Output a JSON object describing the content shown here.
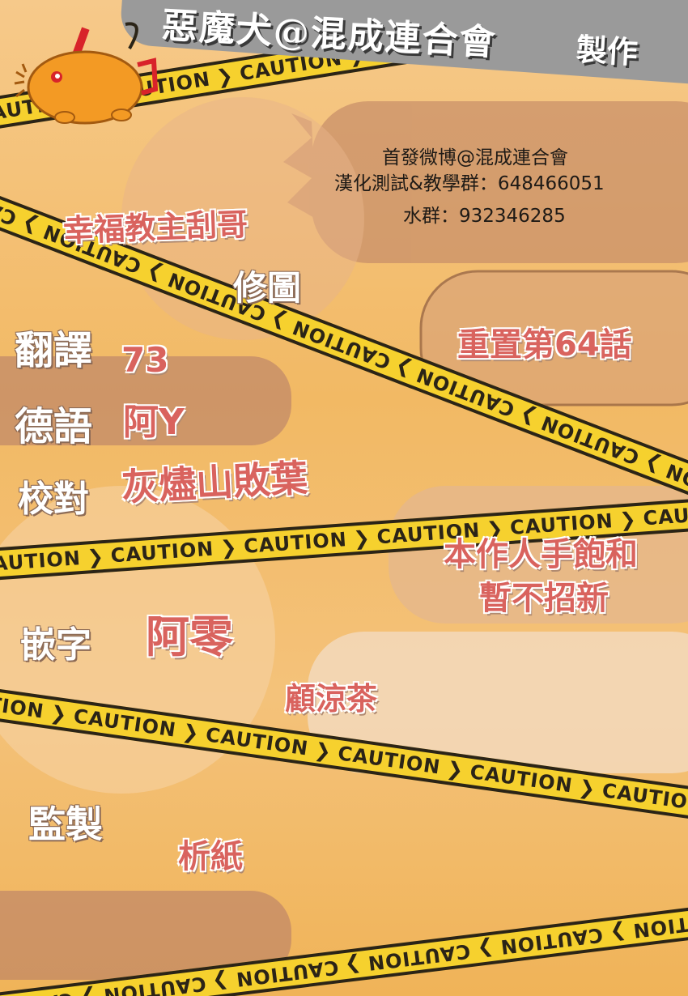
{
  "header": {
    "group": "惡魔犬@混成連合會",
    "credit": "製作"
  },
  "info": {
    "weibo": "首發微博@混成連合會",
    "test_group": "漢化測試&教學群：648466051",
    "water_group": "水群：932346285"
  },
  "notices": {
    "reset_chapter": "重置第64話",
    "recruit_line1": "本作人手飽和",
    "recruit_line2": "暫不招新"
  },
  "credits": {
    "sponsor": "幸福教主刮哥",
    "retouch_label": "修圖",
    "translate_label": "翻譯",
    "translate_value": "73",
    "german_label": "德語",
    "german_value": "阿Y",
    "proof_label": "校對",
    "proof_value": "灰燼山敗葉",
    "typeset_label": "嵌字",
    "typeset_value": "阿零",
    "typeset_value2": "顧涼茶",
    "supervise_label": "監製",
    "supervise_value": "析紙"
  },
  "tapes": {
    "word": "CAUTION"
  },
  "colors": {
    "background": "#f4c27a",
    "tape": "#f6d12e",
    "banner": "#9a9a9a",
    "value_text": "#d9635e",
    "label_text": "#ffffff"
  },
  "icons": {
    "mascot": "pochita-chainsaw-dog-icon"
  }
}
